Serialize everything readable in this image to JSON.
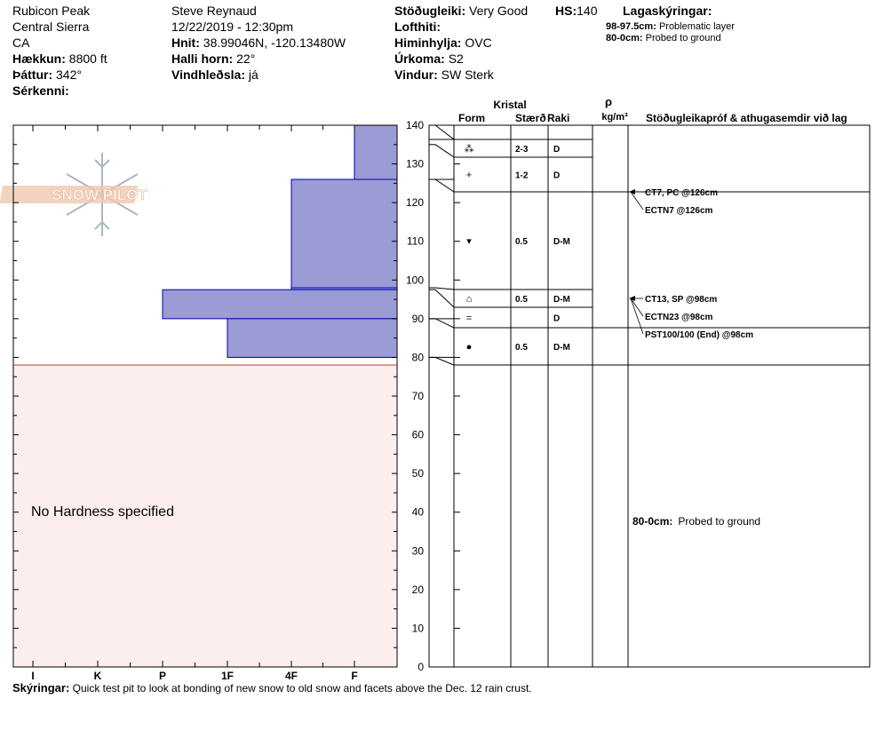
{
  "header": {
    "location": "Rubicon Peak",
    "range": "Central Sierra",
    "state": "CA",
    "elevation_label": "Hækkun:",
    "elevation_value": "8800 ft",
    "aspect_label": "Þáttur:",
    "aspect_value": "342°",
    "features_label": "Sérkenni:",
    "observer": "Steve Reynaud",
    "datetime": "12/22/2019 - 12:30pm",
    "coords_label": "Hnit:",
    "coords_value": "38.99046N, -120.13480W",
    "slope_label": "Halli horn:",
    "slope_value": "22°",
    "wind_loading_label": "Vindhleðsla:",
    "wind_loading_value": "já",
    "stability_label": "Stöðugleiki:",
    "stability_value": "Very Good",
    "hs_label": "HS:",
    "hs_value": "140",
    "air_temp_label": "Lofthiti:",
    "sky_label": "Himinhylja:",
    "sky_value": "OVC",
    "precip_label": "Úrkoma:",
    "precip_value": "S2",
    "wind_label": "Vindur:",
    "wind_value": "SW Sterk",
    "legend_title": "Lagaskýringar:",
    "legend_items": [
      {
        "range": "98-97.5cm:",
        "text": "Problematic layer"
      },
      {
        "range": "80-0cm:",
        "text": "Probed to ground"
      }
    ]
  },
  "columns": {
    "crystal": "Kristal",
    "form": "Form",
    "size": "Stærð",
    "moisture": "Raki",
    "rho": "ρ",
    "density_unit": "kg/m³",
    "tests": "Stöðugleikapróf & athugasemdir við lag"
  },
  "logo_text": "SNOW PILOT",
  "no_hardness_text": "No Hardness specified",
  "comment_80_label": "80-0cm:",
  "comment_80_text": "Probed to ground",
  "footer": {
    "label": "Skýringar:",
    "text": "Quick test pit to look at bonding of new snow to old snow and facets above the Dec. 12 rain crust."
  },
  "chart_data": {
    "type": "bar",
    "orientation": "horizontal",
    "y_axis": {
      "label": "",
      "range": [
        0,
        140
      ],
      "ticks": [
        0,
        10,
        20,
        30,
        40,
        50,
        60,
        70,
        80,
        90,
        100,
        110,
        120,
        130,
        140
      ]
    },
    "x_axis": {
      "categories": [
        "I",
        "K",
        "P",
        "1F",
        "4F",
        "F"
      ]
    },
    "hardness_profile": [
      {
        "top": 140,
        "bottom": 126,
        "hardness": "F"
      },
      {
        "top": 126,
        "bottom": 98,
        "hardness": "4F"
      },
      {
        "top": 98,
        "bottom": 97.5,
        "hardness": "4F"
      },
      {
        "top": 97.5,
        "bottom": 90,
        "hardness": "P"
      },
      {
        "top": 90,
        "bottom": 80,
        "hardness": "1F"
      }
    ],
    "no_hardness_range": [
      0,
      80
    ],
    "layer_table": [
      {
        "top": 140,
        "bottom": 135,
        "form": "decomposing-fragmented",
        "size": "2-3",
        "moisture": "D"
      },
      {
        "top": 135,
        "bottom": 126,
        "form": "precipitation-particles",
        "size": "1-2",
        "moisture": "D"
      },
      {
        "top": 126,
        "bottom": 98,
        "form": "depth-hoar",
        "size": "0.5",
        "moisture": "D-M"
      },
      {
        "top": 98,
        "bottom": 97.5,
        "form": "faceted-rounded",
        "size": "0.5",
        "moisture": "D-M"
      },
      {
        "top": 97.5,
        "bottom": 90,
        "form": "crust",
        "size": "",
        "moisture": "D"
      },
      {
        "top": 90,
        "bottom": 80,
        "form": "melt-forms",
        "size": "0.5",
        "moisture": "D-M"
      }
    ],
    "tests": [
      {
        "depth": 126,
        "labels": [
          "CT7, PC @126cm",
          "ECTN7 @126cm"
        ]
      },
      {
        "depth": 98,
        "labels": [
          "CT13, SP @98cm",
          "ECTN23 @98cm",
          "PST100/100 (End) @98cm"
        ]
      }
    ]
  }
}
